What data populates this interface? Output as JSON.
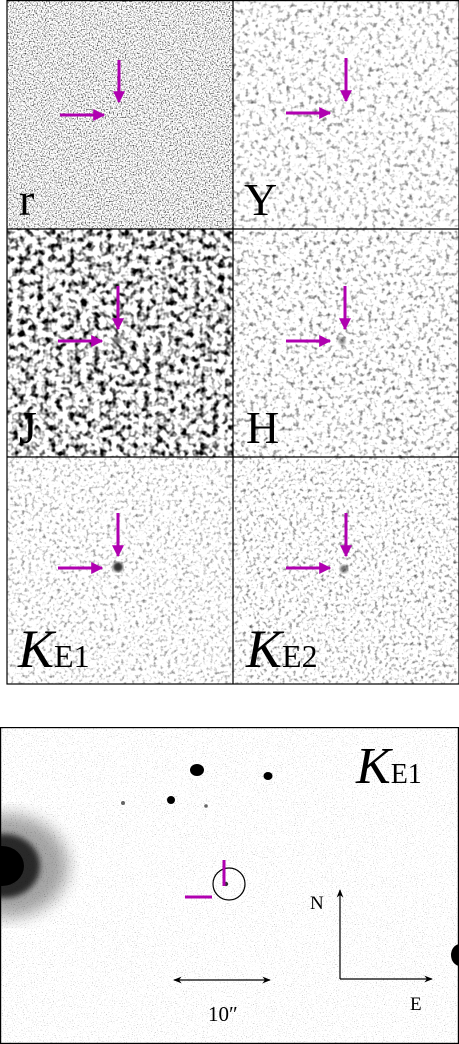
{
  "figure": {
    "stamps": [
      {
        "band": "r",
        "sub": ""
      },
      {
        "band": "Y",
        "sub": ""
      },
      {
        "band": "J",
        "sub": ""
      },
      {
        "band": "H",
        "sub": ""
      },
      {
        "band": "K",
        "sub": "E1"
      },
      {
        "band": "K",
        "sub": "E2"
      }
    ],
    "finder": {
      "band": "K",
      "sub": "E1",
      "compass_north": "N",
      "compass_east": "E",
      "scale_bar_label": "10″"
    }
  },
  "colors": {
    "marker": "#b000b0",
    "frame": "#000000",
    "background": "#ffffff"
  }
}
